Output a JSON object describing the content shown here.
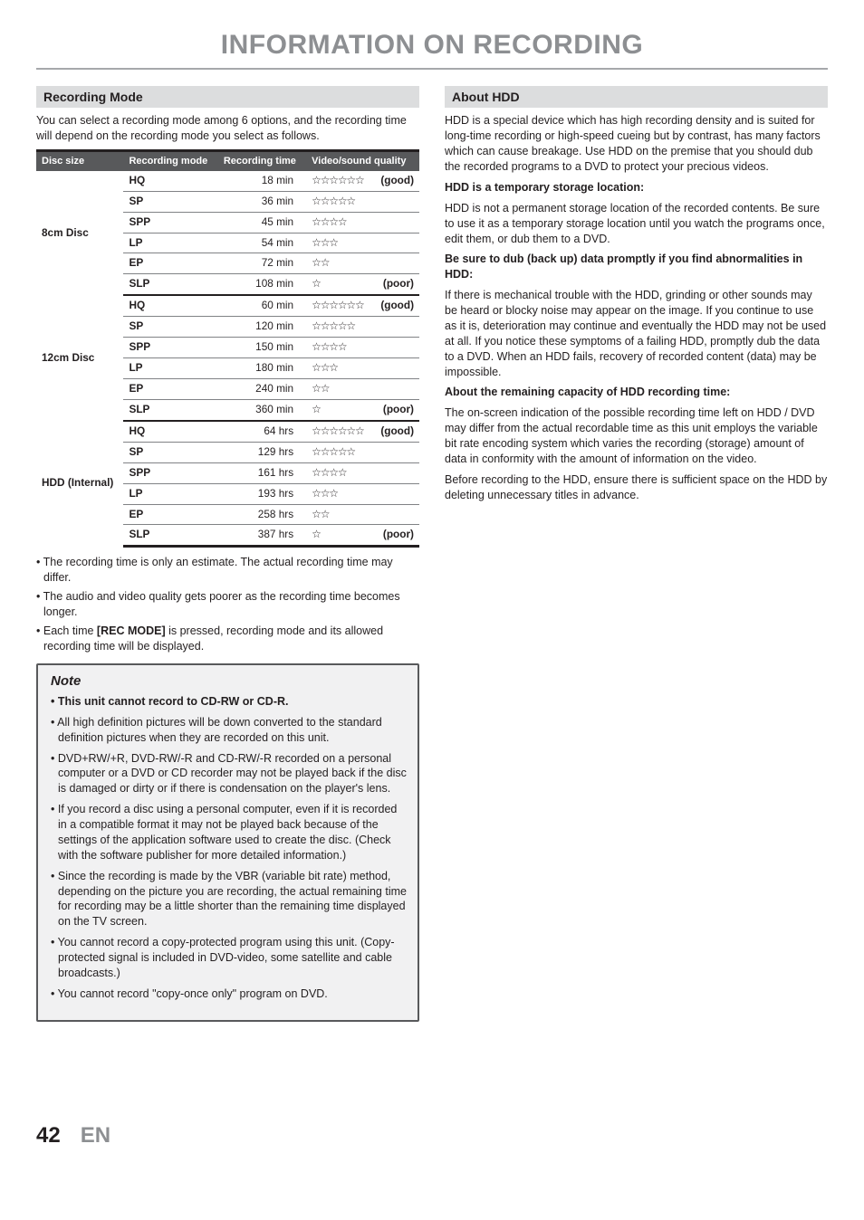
{
  "page_title": "INFORMATION ON RECORDING",
  "left": {
    "heading": "Recording Mode",
    "intro": "You can select a recording mode among 6 options, and the recording time will depend on the recording mode you select as follows.",
    "table": {
      "headers": [
        "Disc size",
        "Recording mode",
        "Recording time",
        "Video/sound quality"
      ],
      "groups": [
        {
          "disc": "8cm Disc",
          "rows": [
            {
              "mode": "HQ",
              "time": "18 min",
              "stars": 6,
              "label": "(good)"
            },
            {
              "mode": "SP",
              "time": "36 min",
              "stars": 5,
              "label": ""
            },
            {
              "mode": "SPP",
              "time": "45 min",
              "stars": 4,
              "label": ""
            },
            {
              "mode": "LP",
              "time": "54 min",
              "stars": 3,
              "label": ""
            },
            {
              "mode": "EP",
              "time": "72 min",
              "stars": 2,
              "label": ""
            },
            {
              "mode": "SLP",
              "time": "108 min",
              "stars": 1,
              "label": "(poor)"
            }
          ]
        },
        {
          "disc": "12cm Disc",
          "rows": [
            {
              "mode": "HQ",
              "time": "60 min",
              "stars": 6,
              "label": "(good)"
            },
            {
              "mode": "SP",
              "time": "120 min",
              "stars": 5,
              "label": ""
            },
            {
              "mode": "SPP",
              "time": "150 min",
              "stars": 4,
              "label": ""
            },
            {
              "mode": "LP",
              "time": "180 min",
              "stars": 3,
              "label": ""
            },
            {
              "mode": "EP",
              "time": "240 min",
              "stars": 2,
              "label": ""
            },
            {
              "mode": "SLP",
              "time": "360 min",
              "stars": 1,
              "label": "(poor)"
            }
          ]
        },
        {
          "disc": "HDD (Internal)",
          "rows": [
            {
              "mode": "HQ",
              "time": "64 hrs",
              "stars": 6,
              "label": "(good)"
            },
            {
              "mode": "SP",
              "time": "129 hrs",
              "stars": 5,
              "label": ""
            },
            {
              "mode": "SPP",
              "time": "161 hrs",
              "stars": 4,
              "label": ""
            },
            {
              "mode": "LP",
              "time": "193 hrs",
              "stars": 3,
              "label": ""
            },
            {
              "mode": "EP",
              "time": "258 hrs",
              "stars": 2,
              "label": ""
            },
            {
              "mode": "SLP",
              "time": "387 hrs",
              "stars": 1,
              "label": "(poor)"
            }
          ]
        }
      ]
    },
    "after_bullets": [
      "The recording time is only an estimate. The actual recording time may differ.",
      "The audio and video quality gets poorer as the recording time becomes longer.",
      "Each time [REC MODE] is pressed, recording mode and its allowed recording time will be displayed."
    ],
    "note_title": "Note",
    "note_bullets": [
      "This unit cannot record to CD-RW or CD-R.",
      "All high definition pictures will be down converted to the standard definition pictures when they are recorded on this unit.",
      "DVD+RW/+R, DVD-RW/-R and CD-RW/-R recorded on a personal computer or a DVD or CD recorder may not be played back if the disc is damaged or dirty or if there is condensation on the player's lens.",
      "If you record a disc using a personal computer, even if it is recorded in a compatible format it may not be played back because of the settings of the application software used to create the disc. (Check with the software publisher for more detailed information.)",
      "Since the recording is made by the VBR (variable bit rate) method, depending on the picture you are recording, the actual remaining time for recording may be a little shorter than the remaining time displayed on the TV screen.",
      "You cannot record a copy-protected program using this unit. (Copy-protected signal is included in DVD-video, some satellite and cable broadcasts.)",
      "You cannot record \"copy-once only\" program on DVD."
    ]
  },
  "right": {
    "heading": "About HDD",
    "para1": "HDD is a special device which has high recording density and is suited for long-time recording or high-speed cueing but by contrast, has many factors which can cause breakage. Use HDD on the premise that you should dub the recorded programs to a DVD to protect your precious videos.",
    "sub1": "HDD is a temporary storage location:",
    "para2": "HDD is not a permanent storage location of the recorded contents. Be sure to use it as a temporary storage location until you watch the programs once, edit them, or dub them to a DVD.",
    "sub2": "Be sure to dub (back up) data promptly if you find abnormalities in HDD:",
    "para3": "If there is mechanical trouble with the HDD, grinding or other sounds may be heard or blocky noise may appear on the image. If you continue to use as it is, deterioration may continue and eventually the HDD may not be used at all. If you notice these symptoms of a failing HDD, promptly dub the data to a DVD. When an HDD fails, recovery of recorded content (data) may be impossible.",
    "sub3": "About the remaining capacity of HDD recording time:",
    "para4": "The on-screen indication of the possible recording time left on HDD / DVD may differ from the actual recordable time as this unit employs the variable bit rate encoding system which varies the recording (storage) amount of data in conformity with the amount of information on the video.",
    "para5": "Before recording to the HDD, ensure there is sufficient space on the HDD by deleting unnecessary titles in advance."
  },
  "footer": {
    "page": "42",
    "lang": "EN"
  }
}
